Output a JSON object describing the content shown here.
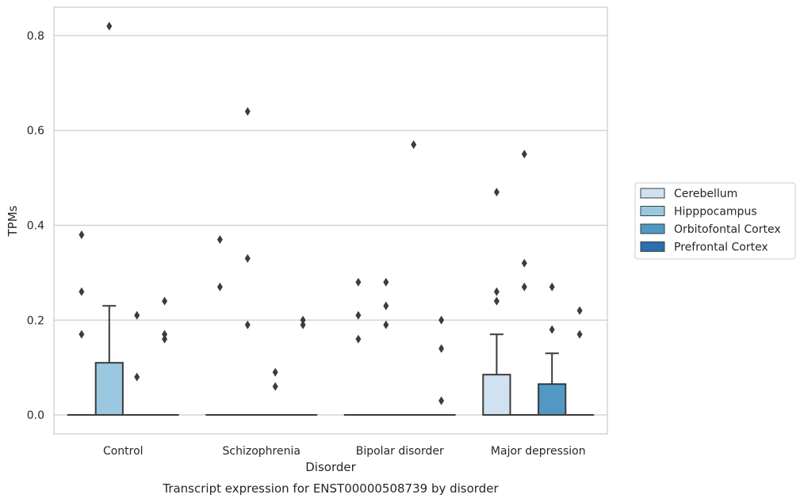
{
  "chart_data": {
    "type": "box",
    "caption": "Transcript expression for ENST00000508739 by disorder",
    "xlabel": "Disorder",
    "ylabel": "TPMs",
    "ylim": [
      -0.04,
      0.86
    ],
    "yticks": [
      0.0,
      0.2,
      0.4,
      0.6,
      0.8
    ],
    "ytick_labels": [
      "0.0",
      "0.2",
      "0.4",
      "0.6",
      "0.8"
    ],
    "grid": "horizontal",
    "legend_position": "right",
    "categories": [
      "Control",
      "Schizophrenia",
      "Bipolar disorder",
      "Major depression"
    ],
    "series": [
      {
        "name": "Cerebellum",
        "color": "#d0e1f2",
        "boxes": [
          {
            "q1": 0,
            "median": 0,
            "q3": 0,
            "whislo": 0,
            "whishi": 0,
            "fliers": [
              0.38,
              0.26,
              0.17
            ]
          },
          {
            "q1": 0,
            "median": 0,
            "q3": 0,
            "whislo": 0,
            "whishi": 0,
            "fliers": [
              0.37,
              0.27
            ]
          },
          {
            "q1": 0,
            "median": 0,
            "q3": 0,
            "whislo": 0,
            "whishi": 0,
            "fliers": [
              0.28,
              0.21,
              0.16
            ]
          },
          {
            "q1": 0,
            "median": 0,
            "q3": 0.085,
            "whislo": 0,
            "whishi": 0.17,
            "fliers": [
              0.47,
              0.26,
              0.24
            ]
          }
        ]
      },
      {
        "name": "Hipppocampus",
        "color": "#9ac8e0",
        "boxes": [
          {
            "q1": 0,
            "median": 0,
            "q3": 0.11,
            "whislo": 0,
            "whishi": 0.23,
            "fliers": [
              0.82
            ]
          },
          {
            "q1": 0,
            "median": 0,
            "q3": 0,
            "whislo": 0,
            "whishi": 0,
            "fliers": [
              0.64,
              0.33,
              0.19
            ]
          },
          {
            "q1": 0,
            "median": 0,
            "q3": 0,
            "whislo": 0,
            "whishi": 0,
            "fliers": [
              0.28,
              0.23,
              0.19
            ]
          },
          {
            "q1": 0,
            "median": 0,
            "q3": 0,
            "whislo": 0,
            "whishi": 0,
            "fliers": [
              0.55,
              0.32,
              0.27
            ]
          }
        ]
      },
      {
        "name": "Orbitofontal Cortex",
        "color": "#5198c5",
        "boxes": [
          {
            "q1": 0,
            "median": 0,
            "q3": 0,
            "whislo": 0,
            "whishi": 0,
            "fliers": [
              0.21,
              0.08
            ]
          },
          {
            "q1": 0,
            "median": 0,
            "q3": 0,
            "whislo": 0,
            "whishi": 0,
            "fliers": [
              0.09,
              0.06
            ]
          },
          {
            "q1": 0,
            "median": 0,
            "q3": 0,
            "whislo": 0,
            "whishi": 0,
            "fliers": [
              0.57
            ]
          },
          {
            "q1": 0,
            "median": 0,
            "q3": 0.065,
            "whislo": 0,
            "whishi": 0.13,
            "fliers": [
              0.27,
              0.18
            ]
          }
        ]
      },
      {
        "name": "Prefrontal Cortex",
        "color": "#2a6fae",
        "boxes": [
          {
            "q1": 0,
            "median": 0,
            "q3": 0,
            "whislo": 0,
            "whishi": 0,
            "fliers": [
              0.24,
              0.17,
              0.16
            ]
          },
          {
            "q1": 0,
            "median": 0,
            "q3": 0,
            "whislo": 0,
            "whishi": 0,
            "fliers": [
              0.2,
              0.19
            ]
          },
          {
            "q1": 0,
            "median": 0,
            "q3": 0,
            "whislo": 0,
            "whishi": 0,
            "fliers": [
              0.2,
              0.14,
              0.03
            ]
          },
          {
            "q1": 0,
            "median": 0,
            "q3": 0,
            "whislo": 0,
            "whishi": 0,
            "fliers": [
              0.22,
              0.17
            ]
          }
        ]
      }
    ]
  }
}
